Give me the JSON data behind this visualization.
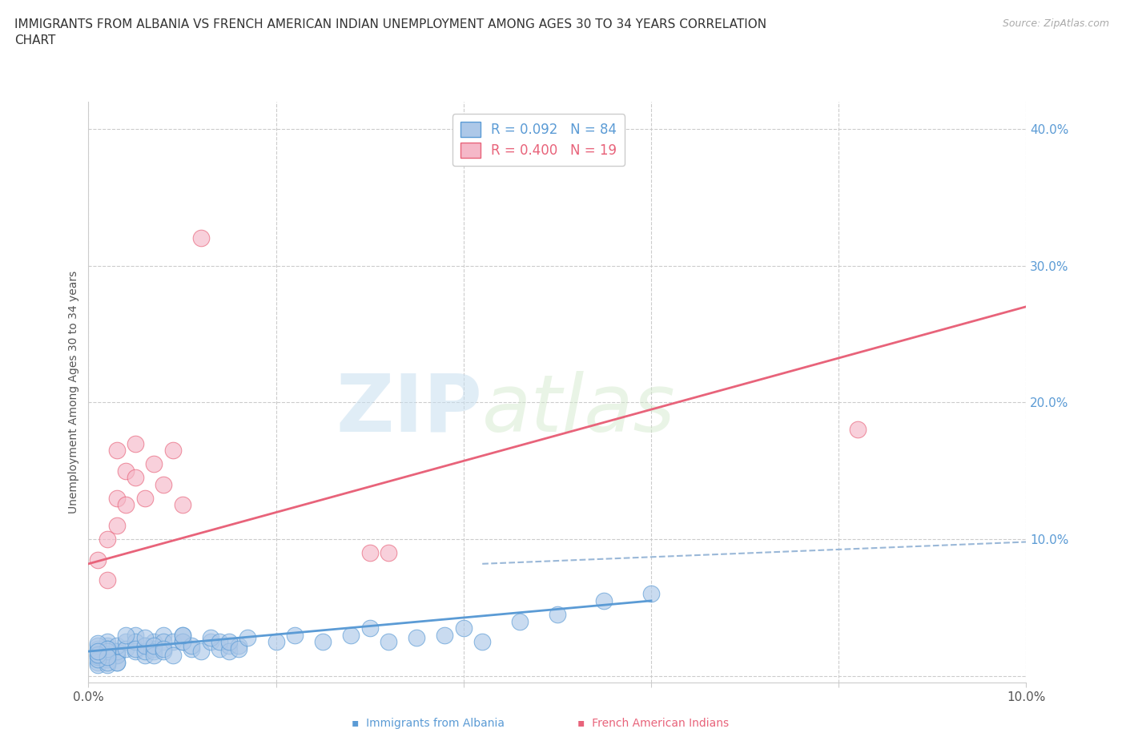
{
  "title": "IMMIGRANTS FROM ALBANIA VS FRENCH AMERICAN INDIAN UNEMPLOYMENT AMONG AGES 30 TO 34 YEARS CORRELATION\nCHART",
  "source": "Source: ZipAtlas.com",
  "ylabel": "Unemployment Among Ages 30 to 34 years",
  "xlim": [
    0.0,
    0.1
  ],
  "ylim": [
    -0.005,
    0.42
  ],
  "xticks": [
    0.0,
    0.02,
    0.04,
    0.06,
    0.08,
    0.1
  ],
  "xtick_labels": [
    "0.0%",
    "",
    "",
    "",
    "",
    "10.0%"
  ],
  "yticks": [
    0.0,
    0.1,
    0.2,
    0.3,
    0.4
  ],
  "ytick_labels": [
    "",
    "10.0%",
    "20.0%",
    "30.0%",
    "40.0%"
  ],
  "legend_r1": "R = 0.092   N = 84",
  "legend_r2": "R = 0.400   N = 19",
  "blue_color": "#adc8e8",
  "pink_color": "#f5b8c8",
  "blue_line_color": "#5b9bd5",
  "pink_line_color": "#e8637a",
  "dashed_line_color": "#9ab8d8",
  "watermark_zip": "ZIP",
  "watermark_atlas": "atlas",
  "blue_scatter_x": [
    0.001,
    0.002,
    0.001,
    0.003,
    0.002,
    0.001,
    0.002,
    0.003,
    0.001,
    0.002,
    0.003,
    0.002,
    0.001,
    0.002,
    0.003,
    0.001,
    0.002,
    0.003,
    0.002,
    0.001,
    0.002,
    0.001,
    0.003,
    0.002,
    0.001,
    0.002,
    0.001,
    0.003,
    0.002,
    0.001,
    0.004,
    0.004,
    0.005,
    0.005,
    0.006,
    0.006,
    0.005,
    0.004,
    0.005,
    0.006,
    0.007,
    0.007,
    0.008,
    0.006,
    0.007,
    0.008,
    0.007,
    0.006,
    0.007,
    0.008,
    0.009,
    0.008,
    0.009,
    0.01,
    0.01,
    0.011,
    0.01,
    0.011,
    0.012,
    0.01,
    0.013,
    0.014,
    0.013,
    0.015,
    0.014,
    0.015,
    0.016,
    0.015,
    0.016,
    0.017,
    0.02,
    0.022,
    0.025,
    0.028,
    0.03,
    0.032,
    0.035,
    0.038,
    0.04,
    0.042,
    0.046,
    0.05,
    0.055,
    0.06
  ],
  "blue_scatter_y": [
    0.02,
    0.015,
    0.01,
    0.018,
    0.012,
    0.008,
    0.022,
    0.016,
    0.014,
    0.025,
    0.01,
    0.02,
    0.018,
    0.012,
    0.015,
    0.022,
    0.008,
    0.018,
    0.016,
    0.024,
    0.01,
    0.015,
    0.022,
    0.018,
    0.012,
    0.02,
    0.016,
    0.01,
    0.014,
    0.018,
    0.025,
    0.02,
    0.03,
    0.018,
    0.022,
    0.015,
    0.025,
    0.03,
    0.02,
    0.018,
    0.025,
    0.02,
    0.03,
    0.022,
    0.018,
    0.025,
    0.015,
    0.028,
    0.022,
    0.018,
    0.025,
    0.02,
    0.015,
    0.025,
    0.03,
    0.02,
    0.025,
    0.022,
    0.018,
    0.03,
    0.025,
    0.02,
    0.028,
    0.022,
    0.025,
    0.018,
    0.022,
    0.025,
    0.02,
    0.028,
    0.025,
    0.03,
    0.025,
    0.03,
    0.035,
    0.025,
    0.028,
    0.03,
    0.035,
    0.025,
    0.04,
    0.045,
    0.055,
    0.06
  ],
  "pink_scatter_x": [
    0.001,
    0.002,
    0.002,
    0.003,
    0.003,
    0.003,
    0.004,
    0.004,
    0.005,
    0.005,
    0.006,
    0.007,
    0.008,
    0.009,
    0.01,
    0.012,
    0.03,
    0.082,
    0.032
  ],
  "pink_scatter_y": [
    0.085,
    0.1,
    0.07,
    0.13,
    0.11,
    0.165,
    0.15,
    0.125,
    0.145,
    0.17,
    0.13,
    0.155,
    0.14,
    0.165,
    0.125,
    0.32,
    0.09,
    0.18,
    0.09
  ],
  "blue_trend_x": [
    0.0,
    0.06
  ],
  "blue_trend_y": [
    0.018,
    0.055
  ],
  "pink_trend_x": [
    0.0,
    0.1
  ],
  "pink_trend_y": [
    0.082,
    0.27
  ],
  "dashed_line_x": [
    0.042,
    0.1
  ],
  "dashed_line_y": [
    0.082,
    0.098
  ]
}
